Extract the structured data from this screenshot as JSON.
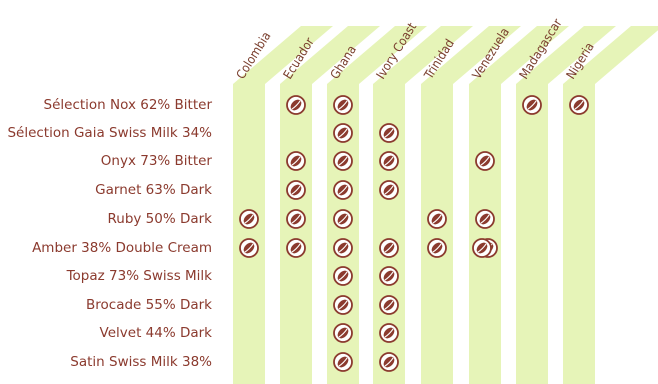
{
  "chart_data": {
    "type": "table",
    "columns": [
      "Colombia",
      "Ecuador",
      "Ghana",
      "Ivory Coast",
      "Trinidad",
      "Venezuela",
      "Madagascar",
      "Nigeria"
    ],
    "rows": [
      {
        "label": "Sélection Nox 62% Bitter",
        "origins": [
          "Ecuador",
          "Ghana",
          "Madagascar",
          "Nigeria"
        ]
      },
      {
        "label": "Sélection Gaia Swiss Milk 34%",
        "origins": [
          "Ghana",
          "Ivory Coast"
        ]
      },
      {
        "label": "Onyx 73% Bitter",
        "origins": [
          "Ecuador",
          "Ghana",
          "Ivory Coast",
          "Venezuela"
        ]
      },
      {
        "label": "Garnet 63% Dark",
        "origins": [
          "Ecuador",
          "Ghana",
          "Ivory Coast"
        ]
      },
      {
        "label": "Ruby 50% Dark",
        "origins": [
          "Colombia",
          "Ecuador",
          "Ghana",
          "Trinidad",
          "Venezuela"
        ]
      },
      {
        "label": "Amber 38% Double Cream",
        "origins": [
          "Colombia",
          "Ecuador",
          "Ghana",
          "Ivory Coast",
          "Trinidad",
          "Venezuela"
        ]
      },
      {
        "label": "Topaz 73% Swiss Milk",
        "origins": [
          "Ghana",
          "Ivory Coast"
        ]
      },
      {
        "label": "Brocade 55% Dark",
        "origins": [
          "Ghana",
          "Ivory Coast"
        ]
      },
      {
        "label": "Velvet 44% Dark",
        "origins": [
          "Ghana",
          "Ivory Coast"
        ]
      },
      {
        "label": "Satin Swiss Milk 38%",
        "origins": [
          "Ghana",
          "Ivory Coast"
        ]
      }
    ],
    "doubled_marks": [
      {
        "row": "Amber 38% Double Cream",
        "origin": "Venezuela"
      }
    ]
  },
  "colors": {
    "band": "#e6f4b8",
    "label_text": "#8b3a2e",
    "column_text": "#7a3f2e",
    "bean_fill": "#8b3a2e",
    "bean_ring": "#8b3a2e"
  },
  "icons": {
    "bean": "cocoa-bean-icon"
  }
}
